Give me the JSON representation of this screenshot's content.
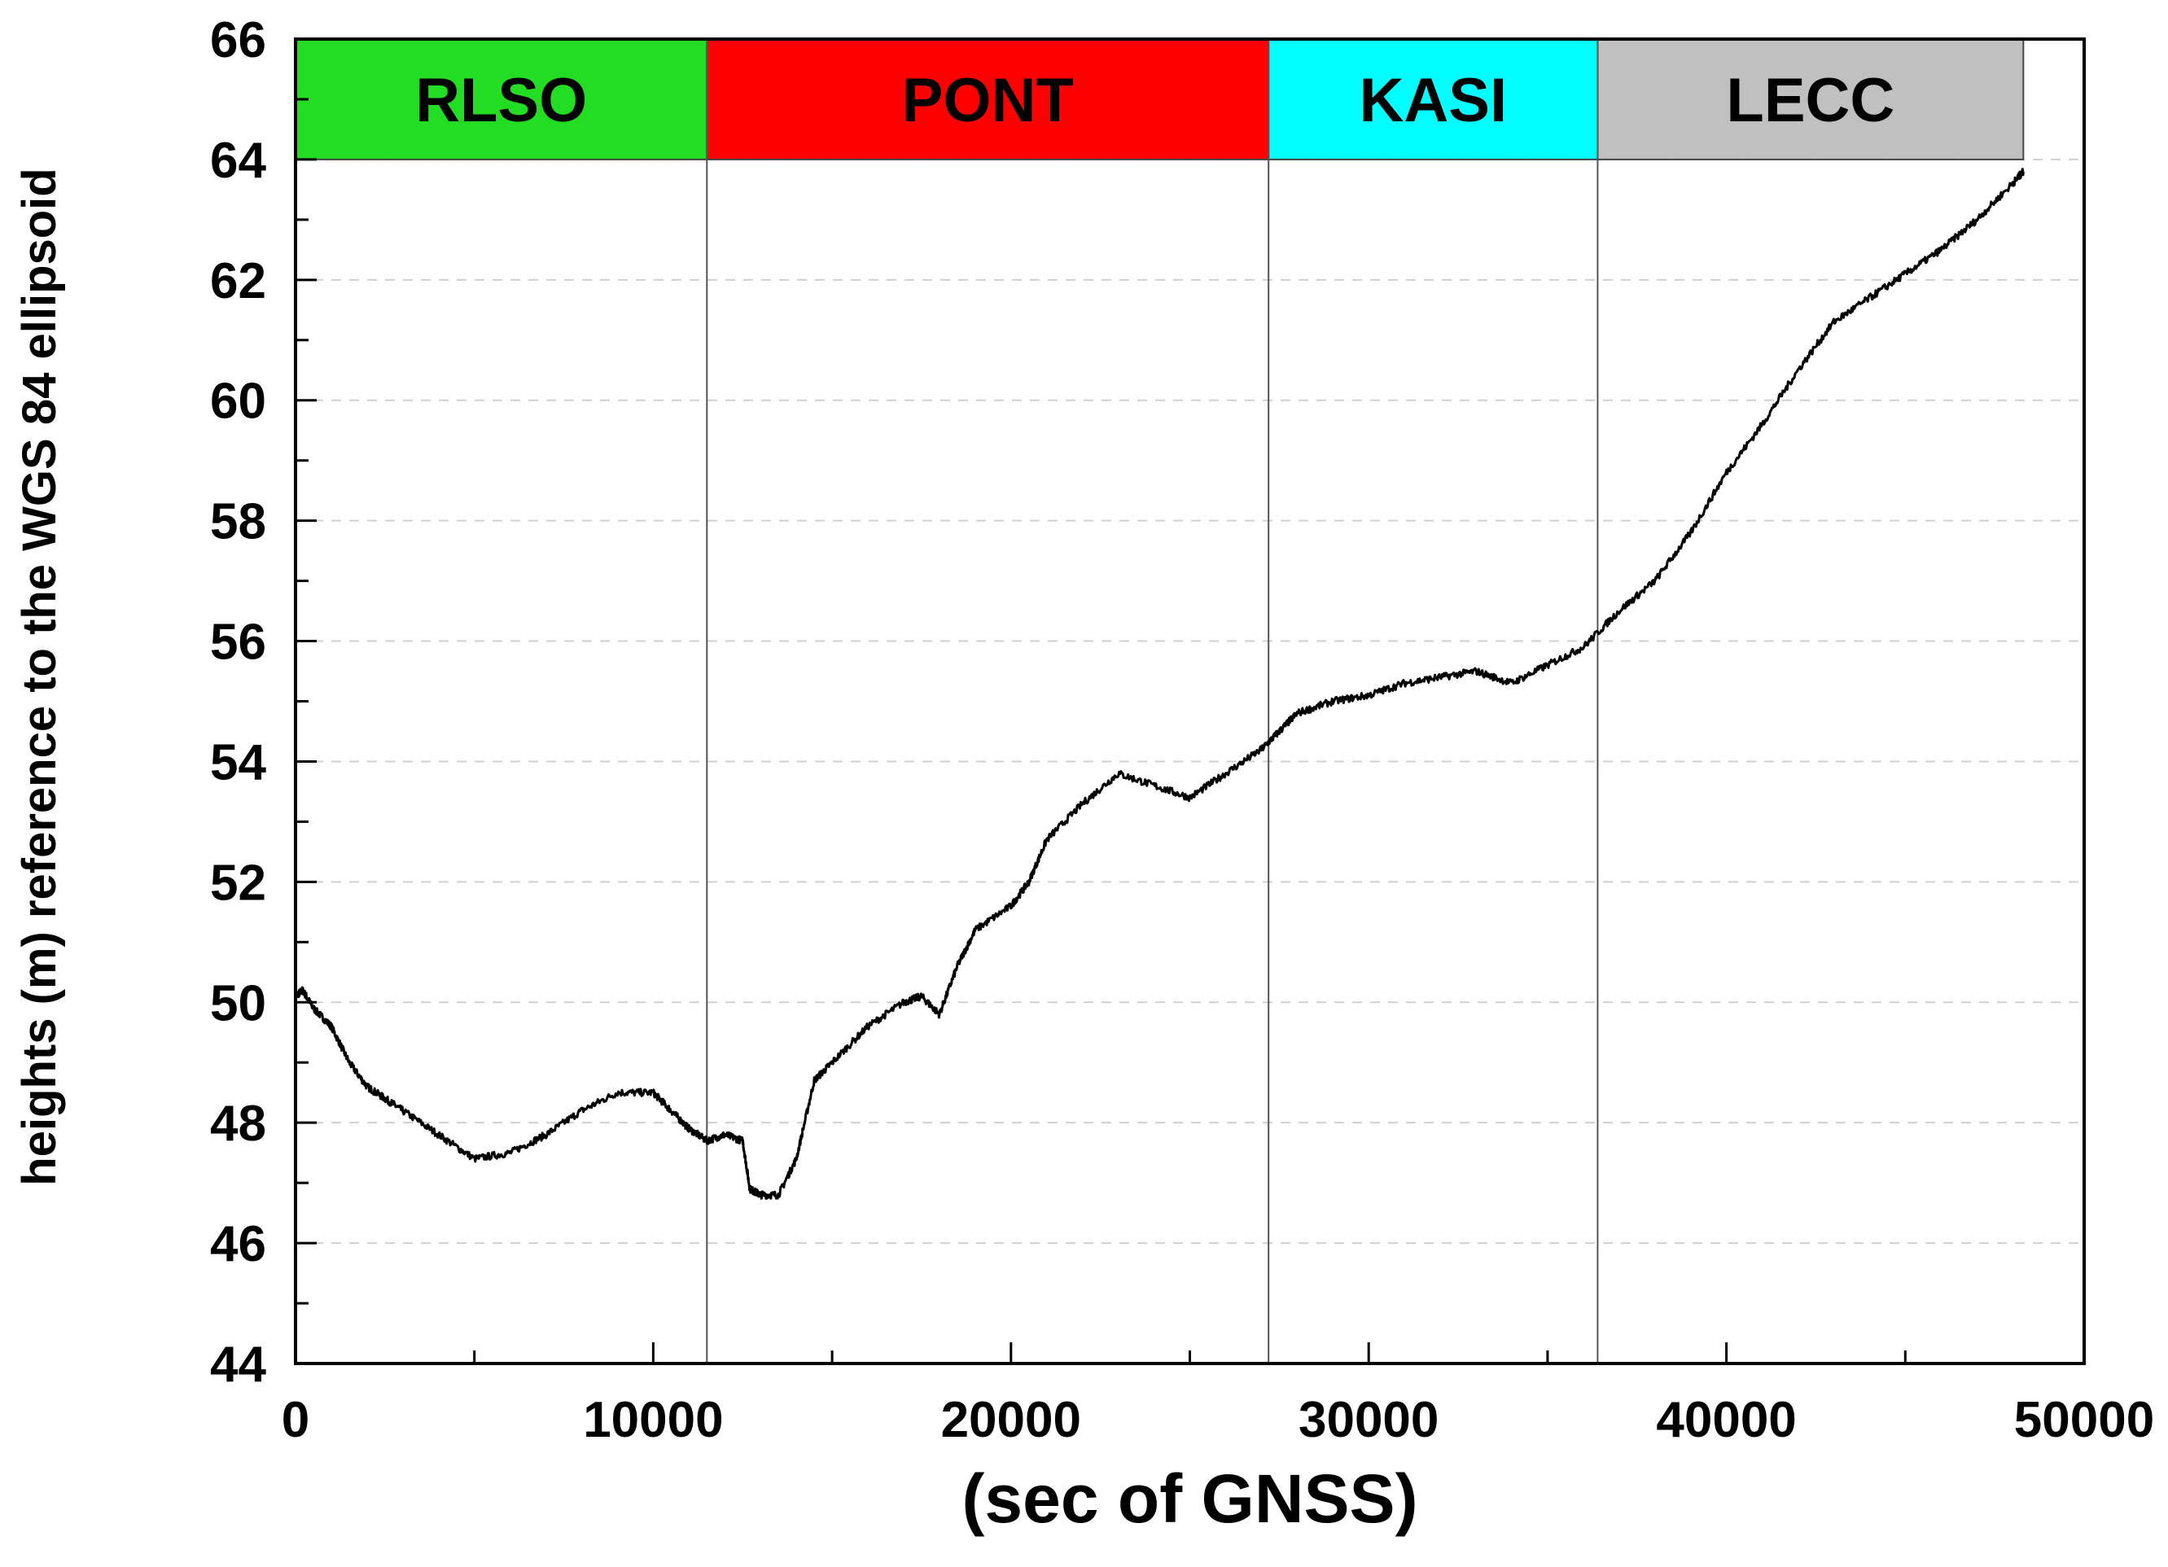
{
  "chart_data": {
    "type": "line",
    "title": "",
    "xlabel": "(sec of GNSS)",
    "ylabel": "heights (m) reference to the WGS 84 ellipsoid",
    "xlim": [
      0,
      50000
    ],
    "ylim": [
      44,
      66
    ],
    "x_ticks": [
      "0",
      "10000",
      "20000",
      "30000",
      "40000",
      "50000"
    ],
    "y_ticks": [
      "44",
      "46",
      "48",
      "50",
      "52",
      "54",
      "56",
      "58",
      "60",
      "62",
      "64",
      "66"
    ],
    "grid": "horizontal dashed",
    "bands": [
      {
        "label": "RLSO",
        "x_start": 0,
        "x_end": 11500,
        "y_start": 64,
        "y_end": 66,
        "color": "#22dd22"
      },
      {
        "label": "PONT",
        "x_start": 11500,
        "x_end": 27200,
        "y_start": 64,
        "y_end": 66,
        "color": "#ff0000"
      },
      {
        "label": "KASI",
        "x_start": 27200,
        "x_end": 36400,
        "y_start": 64,
        "y_end": 66,
        "color": "#00ffff"
      },
      {
        "label": "LECC",
        "x_start": 36400,
        "x_end": 48300,
        "y_start": 64,
        "y_end": 66,
        "color": "#c0c0c0"
      }
    ],
    "series": [
      {
        "color": "#000000",
        "x": [
          0,
          200,
          500,
          1000,
          1500,
          2000,
          2500,
          3000,
          4000,
          5000,
          6000,
          7000,
          8000,
          9000,
          10000,
          10500,
          11000,
          11500,
          12000,
          12500,
          12700,
          13000,
          13500,
          14000,
          14500,
          15000,
          16000,
          17000,
          17500,
          18000,
          18500,
          19000,
          20000,
          20500,
          21000,
          22000,
          23000,
          24000,
          25000,
          26000,
          27000,
          27500,
          28000,
          29000,
          30000,
          31000,
          32000,
          33000,
          34000,
          35000,
          36000,
          37000,
          38000,
          39000,
          40000,
          41000,
          42000,
          43000,
          44000,
          45000,
          46000,
          47000,
          48000,
          48300
        ],
        "y": [
          50.1,
          50.2,
          49.9,
          49.6,
          49.0,
          48.6,
          48.4,
          48.2,
          47.8,
          47.4,
          47.5,
          47.8,
          48.2,
          48.5,
          48.5,
          48.2,
          47.9,
          47.7,
          47.8,
          47.7,
          46.9,
          46.8,
          46.8,
          47.4,
          48.7,
          49.0,
          49.6,
          50.0,
          50.1,
          49.8,
          50.6,
          51.2,
          51.6,
          52.0,
          52.7,
          53.3,
          53.8,
          53.6,
          53.4,
          53.8,
          54.2,
          54.5,
          54.8,
          55.0,
          55.1,
          55.3,
          55.4,
          55.5,
          55.3,
          55.6,
          55.9,
          56.5,
          57.0,
          57.8,
          58.8,
          59.6,
          60.5,
          61.3,
          61.7,
          62.1,
          62.5,
          63.0,
          63.6,
          63.8
        ]
      }
    ]
  }
}
